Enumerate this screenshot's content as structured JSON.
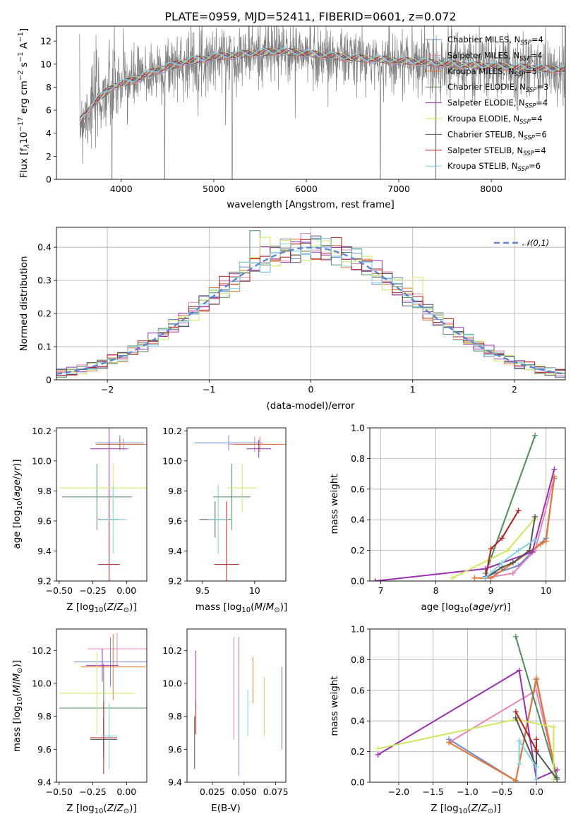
{
  "chart_data": [
    {
      "id": "spectrum",
      "type": "line",
      "title": "PLATE=0959, MJD=52411, FIBERID=0601, z=0.072",
      "xlabel": "wavelength [Angstrom, rest frame]",
      "ylabel": "Flux [f_λ10^{-17} erg cm^{-2} s^{-1} A^{-1}]",
      "xlim": [
        3300,
        8800
      ],
      "ylim": [
        0,
        13.3
      ],
      "xticks": [
        4000,
        5000,
        6000,
        7000,
        8000
      ],
      "yticks": [
        0,
        2,
        4,
        6,
        8,
        10,
        12
      ],
      "grid": false,
      "legend_position": "right",
      "legend": [
        {
          "base": "Chabrier MILES, N",
          "sub": "SSP",
          "tail": "=4",
          "color": "#6b86d6"
        },
        {
          "base": "Salpeter MILES, N",
          "sub": "SSP",
          "tail": "=4",
          "color": "#e883b9"
        },
        {
          "base": "Kroupa MILES, N",
          "sub": "SSP",
          "tail": "=5",
          "color": "#e8752a"
        },
        {
          "base": "Chabrier ELODIE, N",
          "sub": "SSP",
          "tail": "=3",
          "color": "#4f8c5e"
        },
        {
          "base": "Salpeter ELODIE, N",
          "sub": "SSP",
          "tail": "=4",
          "color": "#9b30b0"
        },
        {
          "base": "Kroupa ELODIE, N",
          "sub": "SSP",
          "tail": "=4",
          "color": "#cfe85a"
        },
        {
          "base": "Chabrier STELIB, N",
          "sub": "SSP",
          "tail": "=6",
          "color": "#555555"
        },
        {
          "base": "Salpeter STELIB, N",
          "sub": "SSP",
          "tail": "=4",
          "color": "#b22222"
        },
        {
          "base": "Kroupa STELIB, N",
          "sub": "SSP",
          "tail": "=6",
          "color": "#7fd3de"
        }
      ],
      "data_range": [
        3550,
        8800
      ],
      "continuum": [
        [
          3550,
          5.0
        ],
        [
          3700,
          6.6
        ],
        [
          3900,
          8.0
        ],
        [
          4100,
          8.5
        ],
        [
          4400,
          9.5
        ],
        [
          4700,
          10.2
        ],
        [
          5000,
          10.6
        ],
        [
          5400,
          10.9
        ],
        [
          5700,
          11.1
        ],
        [
          6000,
          10.9
        ],
        [
          6500,
          10.5
        ],
        [
          7000,
          10.3
        ],
        [
          7500,
          10.0
        ],
        [
          8000,
          9.8
        ],
        [
          8800,
          9.5
        ]
      ],
      "absorption_lines_x": [
        3900,
        4470,
        5200,
        6800,
        7400
      ],
      "noise_level": 1.4
    },
    {
      "id": "residuals",
      "type": "histogram",
      "xlabel": "(data-model)/error",
      "ylabel": "Normed distribution",
      "xlim": [
        -2.5,
        2.5
      ],
      "ylim": [
        0,
        0.46
      ],
      "xticks": [
        -2,
        -1,
        0,
        1,
        2
      ],
      "yticks": [
        0.0,
        0.1,
        0.2,
        0.3,
        0.4
      ],
      "grid": true,
      "bin_width": 0.1,
      "reference_curve": {
        "name": "𝒩(0,1)",
        "mean": 0,
        "std": 1,
        "color": "#5b84d6",
        "style": "dashed"
      },
      "series_colors": [
        "#6b86d6",
        "#e883b9",
        "#e8752a",
        "#4f8c5e",
        "#9b30b0",
        "#cfe85a",
        "#555555",
        "#b22222",
        "#7fd3de"
      ],
      "spikes": [
        {
          "x": -0.55,
          "value": 0.45,
          "series": 3
        },
        {
          "x": -0.45,
          "value": 0.43,
          "series": 5
        },
        {
          "x": 1.05,
          "value": 0.31,
          "series": 5
        },
        {
          "x": -0.85,
          "value": 0.26,
          "series": 5
        }
      ]
    },
    {
      "id": "age-vs-Z",
      "type": "errorbar",
      "xlabel": "Z [log10(Z/Z⊙)]",
      "ylabel": "age [log10(age/yr)]",
      "xlim": [
        -0.52,
        0.15
      ],
      "ylim": [
        9.2,
        10.22
      ],
      "xticks": [
        -0.5,
        -0.25,
        0.0
      ],
      "xtick_labels": [
        "−0.50",
        "−0.25",
        "0.00"
      ],
      "yticks": [
        9.2,
        9.4,
        9.6,
        9.8,
        10.0,
        10.2
      ],
      "points": [
        {
          "x": -0.05,
          "y": 10.12,
          "xerr": 0.18,
          "yerr": 0.05,
          "series": 0
        },
        {
          "x": -0.02,
          "y": 10.11,
          "xerr": 0.18,
          "yerr": 0.04,
          "series": 1
        },
        {
          "x": -0.05,
          "y": 10.11,
          "xerr": 0.18,
          "yerr": 0.04,
          "series": 2
        },
        {
          "x": -0.22,
          "y": 9.76,
          "xerr": 0.26,
          "yerr": 0.22,
          "series": 3
        },
        {
          "x": -0.13,
          "y": 10.08,
          "xerr": 0.14,
          "yerr": 0.48,
          "series": 4
        },
        {
          "x": -0.1,
          "y": 9.82,
          "xerr": 0.4,
          "yerr": 0.16,
          "series": 5
        },
        {
          "x": -0.13,
          "y": 9.61,
          "xerr": 0.08,
          "yerr": 0.12,
          "series": 6
        },
        {
          "x": -0.13,
          "y": 9.31,
          "xerr": 0.08,
          "yerr": 0.42,
          "series": 7
        },
        {
          "x": -0.1,
          "y": 9.61,
          "xerr": 0.1,
          "yerr": 0.23,
          "series": 8
        }
      ]
    },
    {
      "id": "age-vs-mass",
      "type": "errorbar",
      "xlabel": "mass [log10(M/M⊙)]",
      "xlim": [
        9.35,
        10.3
      ],
      "ylim": [
        9.2,
        10.22
      ],
      "xticks": [
        9.5,
        10.0
      ],
      "yticks": [
        9.2,
        9.4,
        9.6,
        9.8,
        10.0,
        10.2
      ],
      "points": [
        {
          "x": 9.75,
          "y": 10.12,
          "xerr": 0.33,
          "yerr": 0.05,
          "series": 0
        },
        {
          "x": 10.0,
          "y": 10.11,
          "xerr": 0.25,
          "yerr": 0.05,
          "series": 1
        },
        {
          "x": 10.05,
          "y": 10.11,
          "xerr": 0.25,
          "yerr": 0.05,
          "series": 2
        },
        {
          "x": 9.78,
          "y": 9.76,
          "xerr": 0.18,
          "yerr": 0.22,
          "series": 3
        },
        {
          "x": 10.04,
          "y": 10.08,
          "xerr": 0.12,
          "yerr": 0.06,
          "series": 4
        },
        {
          "x": 9.88,
          "y": 9.82,
          "xerr": 0.14,
          "yerr": 0.16,
          "series": 5
        },
        {
          "x": 9.62,
          "y": 9.61,
          "xerr": 0.15,
          "yerr": 0.12,
          "series": 6
        },
        {
          "x": 9.73,
          "y": 9.31,
          "xerr": 0.12,
          "yerr": 0.42,
          "series": 7
        },
        {
          "x": 9.65,
          "y": 9.61,
          "xerr": 0.1,
          "yerr": 0.23,
          "series": 8
        }
      ]
    },
    {
      "id": "mass-weight-vs-age",
      "type": "line",
      "xlabel": "age [log10(age/yr)]",
      "ylabel": "mass weight",
      "xlim": [
        6.8,
        10.35
      ],
      "ylim": [
        0,
        1.0
      ],
      "xticks": [
        7,
        8,
        9,
        10
      ],
      "yticks": [
        0.0,
        0.2,
        0.4,
        0.6,
        0.8,
        1.0
      ],
      "grid": true,
      "series": [
        {
          "series": 0,
          "x": [
            8.9,
            9.5,
            10.0,
            10.15
          ],
          "y": [
            0.03,
            0.1,
            0.28,
            0.67
          ]
        },
        {
          "series": 1,
          "x": [
            8.9,
            9.4,
            9.8,
            10.15
          ],
          "y": [
            0.02,
            0.05,
            0.2,
            0.68
          ]
        },
        {
          "series": 2,
          "x": [
            8.7,
            9.0,
            9.9,
            10.0,
            10.15
          ],
          "y": [
            0.02,
            0.02,
            0.24,
            0.26,
            0.68
          ]
        },
        {
          "series": 3,
          "x": [
            8.9,
            9.8
          ],
          "y": [
            0.05,
            0.95
          ]
        },
        {
          "series": 4,
          "x": [
            6.9,
            8.9,
            9.75,
            10.15
          ],
          "y": [
            0.0,
            0.08,
            0.19,
            0.73
          ]
        },
        {
          "series": 5,
          "x": [
            8.3,
            9.3,
            9.8
          ],
          "y": [
            0.02,
            0.2,
            0.41
          ]
        },
        {
          "series": 6,
          "x": [
            8.9,
            9.2,
            9.4,
            9.7,
            9.8
          ],
          "y": [
            0.02,
            0.09,
            0.12,
            0.2,
            0.42
          ]
        },
        {
          "series": 7,
          "x": [
            8.9,
            9.0,
            9.2,
            9.5
          ],
          "y": [
            0.02,
            0.21,
            0.28,
            0.46
          ]
        },
        {
          "series": 8,
          "x": [
            8.9,
            9.2,
            9.5,
            9.8
          ],
          "y": [
            0.02,
            0.12,
            0.2,
            0.27
          ]
        }
      ]
    },
    {
      "id": "mass-vs-Z",
      "type": "errorbar",
      "xlabel": "Z [log10(Z/Z⊙)]",
      "ylabel": "mass [log10(M/M⊙)]",
      "xlim": [
        -0.52,
        0.15
      ],
      "ylim": [
        9.4,
        10.33
      ],
      "xticks": [
        -0.5,
        -0.25,
        0.0
      ],
      "xtick_labels": [
        "−0.50",
        "−0.25",
        "0.00"
      ],
      "yticks": [
        9.4,
        9.6,
        9.8,
        10.0,
        10.2
      ],
      "points": [
        {
          "x": -0.12,
          "y": 10.13,
          "xerr": 0.27,
          "yerr": 0.15,
          "series": 0
        },
        {
          "x": -0.07,
          "y": 10.21,
          "xerr": 0.22,
          "yerr": 0.1,
          "series": 1
        },
        {
          "x": -0.1,
          "y": 10.1,
          "xerr": 0.24,
          "yerr": 0.2,
          "series": 2
        },
        {
          "x": -0.17,
          "y": 9.85,
          "xerr": 0.33,
          "yerr": 0.27,
          "series": 3
        },
        {
          "x": -0.18,
          "y": 10.11,
          "xerr": 0.12,
          "yerr": 0.1,
          "series": 4
        },
        {
          "x": -0.22,
          "y": 9.94,
          "xerr": 0.28,
          "yerr": 0.25,
          "series": 5
        },
        {
          "x": -0.17,
          "y": 9.66,
          "xerr": 0.1,
          "yerr": 0.12,
          "series": 6
        },
        {
          "x": -0.17,
          "y": 9.67,
          "xerr": 0.1,
          "yerr": 0.22,
          "series": 7
        },
        {
          "x": -0.13,
          "y": 9.68,
          "xerr": 0.06,
          "yerr": 0.2,
          "series": 8
        }
      ]
    },
    {
      "id": "mass-vs-ebv",
      "type": "errorbar",
      "xlabel": "E(B-V)",
      "xlim": [
        0.005,
        0.083
      ],
      "ylim": [
        9.4,
        10.33
      ],
      "xticks": [
        0.025,
        0.05,
        0.075
      ],
      "xtick_labels": [
        "0.025",
        "0.050",
        "0.075"
      ],
      "yticks": [
        9.4,
        9.6,
        9.8,
        10.0,
        10.2
      ],
      "points": [
        {
          "x": 0.046,
          "y": 9.86,
          "yerr": 0.42,
          "series": 0
        },
        {
          "x": 0.042,
          "y": 9.97,
          "yerr": 0.31,
          "series": 1
        },
        {
          "x": 0.057,
          "y": 10.02,
          "yerr": 0.14,
          "series": 2
        },
        {
          "x": 0.08,
          "y": 9.85,
          "yerr": 0.25,
          "series": 3
        },
        {
          "x": 0.012,
          "y": 10.02,
          "yerr": 0.18,
          "series": 4
        },
        {
          "x": 0.066,
          "y": 9.86,
          "yerr": 0.18,
          "series": 5
        },
        {
          "x": 0.011,
          "y": 9.64,
          "yerr": 0.16,
          "series": 6
        },
        {
          "x": 0.012,
          "y": 9.79,
          "yerr": 0.1,
          "series": 7
        },
        {
          "x": 0.053,
          "y": 9.82,
          "yerr": 0.14,
          "series": 8
        }
      ]
    },
    {
      "id": "mass-weight-vs-Z",
      "type": "line",
      "xlabel": "Z [log10(Z/Z⊙)]",
      "ylabel": "mass weight",
      "xlim": [
        -2.42,
        0.42
      ],
      "ylim": [
        0,
        1.0
      ],
      "xticks": [
        -2.0,
        -1.5,
        -1.0,
        -0.5,
        0.0
      ],
      "xtick_labels": [
        "−2.0",
        "−1.5",
        "−1.0",
        "−0.5",
        "0.0"
      ],
      "yticks": [
        0.0,
        0.2,
        0.4,
        0.6,
        0.8,
        1.0
      ],
      "grid": true,
      "series": [
        {
          "series": 0,
          "x": [
            -1.27,
            -0.3,
            0.0,
            0.3
          ],
          "y": [
            0.28,
            0.01,
            0.67,
            0.02
          ]
        },
        {
          "series": 1,
          "x": [
            -1.27,
            0.0,
            0.3
          ],
          "y": [
            0.26,
            0.6,
            0.03
          ]
        },
        {
          "series": 2,
          "x": [
            -1.27,
            -0.3,
            0.0,
            0.3
          ],
          "y": [
            0.26,
            0.01,
            0.68,
            0.02
          ]
        },
        {
          "series": 3,
          "x": [
            -0.3,
            0.3
          ],
          "y": [
            0.95,
            0.03
          ]
        },
        {
          "series": 4,
          "x": [
            -2.3,
            -0.25,
            0.0,
            0.3
          ],
          "y": [
            0.18,
            0.73,
            0.02,
            0.08
          ]
        },
        {
          "series": 5,
          "x": [
            -2.3,
            -0.3,
            0.25,
            0.25
          ],
          "y": [
            0.22,
            0.41,
            0.36,
            0.02
          ]
        },
        {
          "series": 6,
          "x": [
            -0.3,
            0.0,
            0.0,
            0.3
          ],
          "y": [
            0.42,
            0.1,
            0.2,
            0.02
          ]
        },
        {
          "series": 7,
          "x": [
            -0.3,
            0.0,
            0.0
          ],
          "y": [
            0.46,
            0.21,
            0.28
          ]
        },
        {
          "series": 8,
          "x": [
            -0.25,
            -0.25,
            0.0,
            0.0
          ],
          "y": [
            0.12,
            0.27,
            0.1,
            0.02
          ]
        }
      ]
    }
  ]
}
